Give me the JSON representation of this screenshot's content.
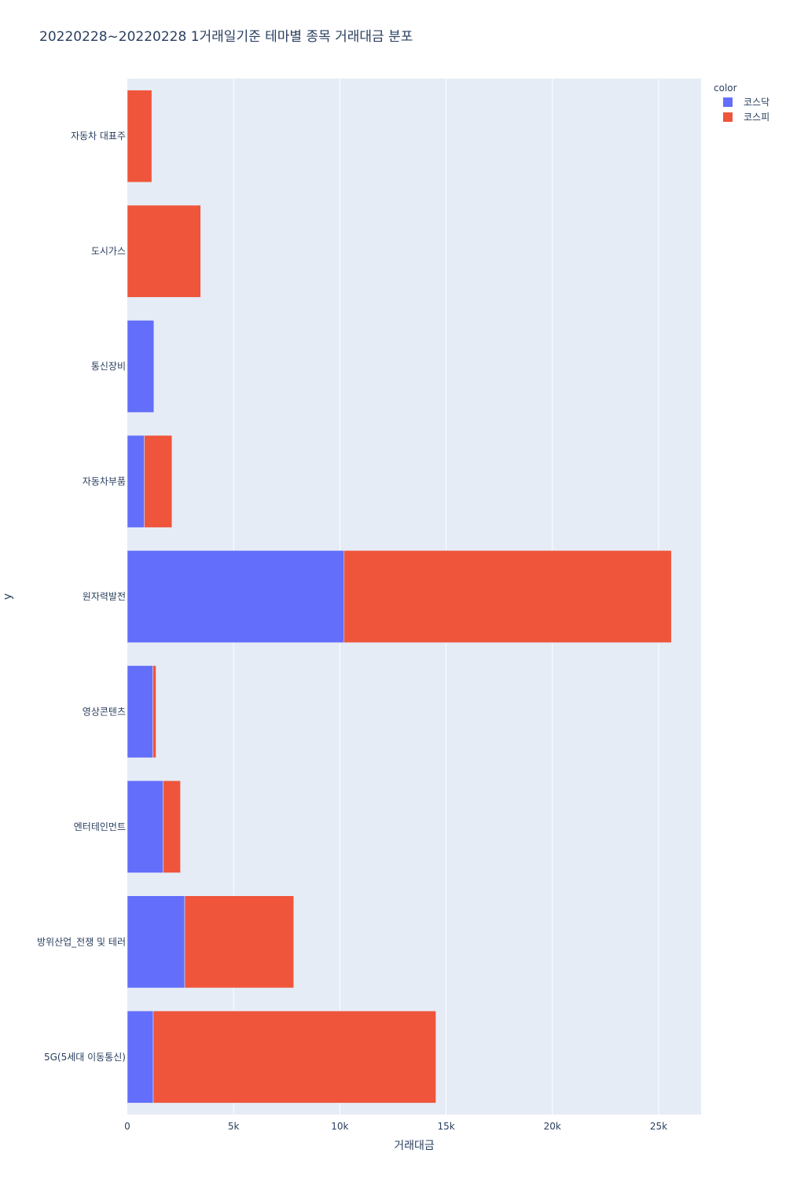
{
  "chart_data": {
    "type": "bar",
    "orientation": "horizontal",
    "barmode": "stack",
    "title": "20220228~20220228 1거래일기준 테마별 종목 거래대금 분포",
    "xlabel": "거래대금",
    "ylabel": "y",
    "xlim": [
      0,
      27000
    ],
    "x_ticks": [
      0,
      5000,
      10000,
      15000,
      20000,
      25000
    ],
    "x_tick_labels": [
      "0",
      "5k",
      "10k",
      "15k",
      "20k",
      "25k"
    ],
    "grid": true,
    "legend_title": "color",
    "legend_position": "top-right",
    "categories": [
      "자동차 대표주",
      "도시가스",
      "통신장비",
      "자동차부품",
      "원자력발전",
      "영상콘텐츠",
      "엔터테인먼트",
      "방위산업_전쟁 및 테러",
      "5G(5세대 이동통신)"
    ],
    "series": [
      {
        "name": "코스닥",
        "color": "#636efa",
        "values": [
          0,
          0,
          1250,
          800,
          10200,
          1200,
          1680,
          2700,
          1220
        ]
      },
      {
        "name": "코스피",
        "color": "#ef553b",
        "values": [
          1150,
          3450,
          0,
          1300,
          15400,
          150,
          820,
          5130,
          13300
        ]
      }
    ]
  }
}
